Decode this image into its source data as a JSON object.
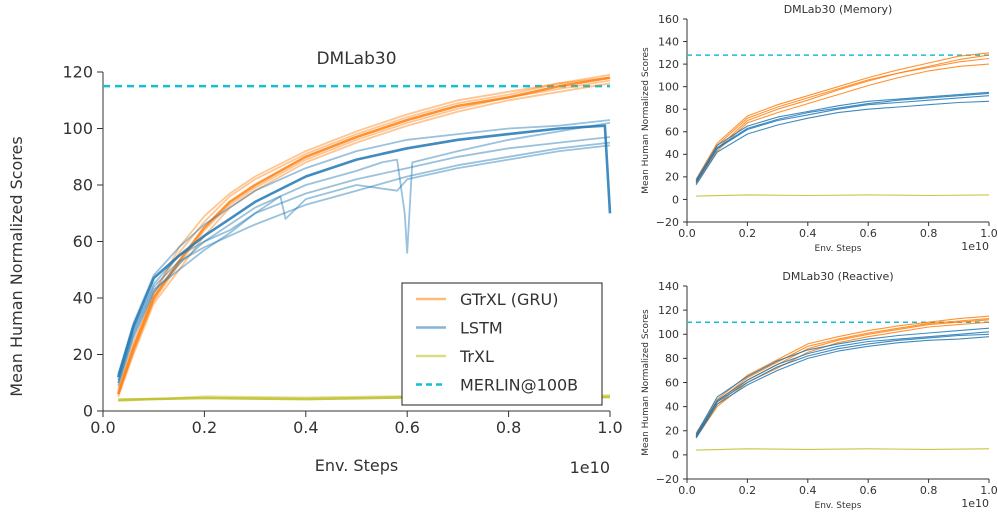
{
  "chart_data": [
    {
      "type": "line",
      "title": "DMLab30",
      "xlabel": "Env. Steps",
      "ylabel": "Mean Human Normalized Scores",
      "x_multiplier": "1e10",
      "xlim": [
        0,
        1.0
      ],
      "ylim": [
        0,
        120
      ],
      "xticks": [
        0.0,
        0.2,
        0.4,
        0.6,
        0.8,
        1.0
      ],
      "xtick_labels": [
        "0.0",
        "0.2",
        "0.4",
        "0.6",
        "0.8",
        "1.0"
      ],
      "yticks": [
        0,
        20,
        40,
        60,
        80,
        100,
        120
      ],
      "ytick_labels": [
        "0",
        "20",
        "40",
        "60",
        "80",
        "100",
        "120"
      ],
      "legend": {
        "placement": "lower-right",
        "entries": [
          {
            "label": "GTrXL (GRU)",
            "color": "#ff7f0e",
            "style": "solid"
          },
          {
            "label": "LSTM",
            "color": "#1f77b4",
            "style": "solid"
          },
          {
            "label": "TrXL",
            "color": "#bcbd22",
            "style": "solid"
          },
          {
            "label": "MERLIN@100B",
            "color": "#17becf",
            "style": "dashed"
          }
        ]
      },
      "reference_line": {
        "y": 115,
        "color": "#17becf"
      },
      "series": [
        {
          "group": "GTrXL (GRU)",
          "color": "#ff7f0e",
          "emphasis": true,
          "x": [
            0.03,
            0.06,
            0.1,
            0.15,
            0.2,
            0.25,
            0.3,
            0.4,
            0.5,
            0.6,
            0.7,
            0.8,
            0.9,
            1.0
          ],
          "y": [
            6,
            22,
            40,
            53,
            65,
            74,
            80,
            90,
            97,
            103,
            108,
            111,
            115,
            118
          ]
        },
        {
          "group": "GTrXL (GRU)",
          "color": "#ff7f0e",
          "x": [
            0.03,
            0.06,
            0.1,
            0.15,
            0.2,
            0.25,
            0.3,
            0.4,
            0.5,
            0.6,
            0.7,
            0.8,
            0.9,
            1.0
          ],
          "y": [
            8,
            24,
            42,
            56,
            67,
            76,
            82,
            91,
            98,
            104,
            109,
            112,
            116,
            118
          ]
        },
        {
          "group": "GTrXL (GRU)",
          "color": "#ff7f0e",
          "x": [
            0.03,
            0.06,
            0.1,
            0.15,
            0.2,
            0.25,
            0.3,
            0.4,
            0.5,
            0.6,
            0.7,
            0.8,
            0.9,
            1.0
          ],
          "y": [
            5,
            20,
            38,
            50,
            62,
            72,
            78,
            88,
            95,
            101,
            106,
            110,
            113,
            116
          ]
        },
        {
          "group": "GTrXL (GRU)",
          "color": "#ff7f0e",
          "x": [
            0.03,
            0.06,
            0.1,
            0.15,
            0.2,
            0.25,
            0.3,
            0.4,
            0.5,
            0.6,
            0.7,
            0.8,
            0.9,
            1.0
          ],
          "y": [
            7,
            23,
            41,
            58,
            69,
            77,
            83,
            92,
            99,
            105,
            110,
            113,
            116,
            119
          ]
        },
        {
          "group": "GTrXL (GRU)",
          "color": "#ff7f0e",
          "x": [
            0.03,
            0.06,
            0.1,
            0.15,
            0.2,
            0.25,
            0.3,
            0.4,
            0.5,
            0.6,
            0.7,
            0.8,
            0.9,
            1.0
          ],
          "y": [
            6,
            21,
            39,
            52,
            64,
            73,
            79,
            89,
            96,
            102,
            107,
            111,
            114,
            117
          ]
        },
        {
          "group": "LSTM",
          "color": "#1f77b4",
          "emphasis": true,
          "x": [
            0.03,
            0.06,
            0.1,
            0.15,
            0.2,
            0.25,
            0.3,
            0.4,
            0.5,
            0.6,
            0.7,
            0.8,
            0.9,
            0.99,
            1.0
          ],
          "y": [
            12,
            30,
            47,
            55,
            62,
            68,
            74,
            83,
            89,
            93,
            96,
            98,
            100,
            101,
            70
          ]
        },
        {
          "group": "LSTM",
          "color": "#1f77b4",
          "x": [
            0.03,
            0.06,
            0.1,
            0.15,
            0.2,
            0.25,
            0.3,
            0.4,
            0.5,
            0.6,
            0.7,
            0.8,
            0.9,
            1.0
          ],
          "y": [
            10,
            28,
            44,
            53,
            58,
            62,
            66,
            73,
            78,
            83,
            87,
            90,
            93,
            95
          ]
        },
        {
          "group": "LSTM",
          "color": "#1f77b4",
          "x": [
            0.03,
            0.06,
            0.1,
            0.15,
            0.2,
            0.25,
            0.3,
            0.4,
            0.5,
            0.6,
            0.7,
            0.8,
            0.9,
            1.0
          ],
          "y": [
            11,
            29,
            45,
            55,
            60,
            64,
            70,
            77,
            82,
            86,
            90,
            93,
            95,
            97
          ]
        },
        {
          "group": "LSTM",
          "color": "#1f77b4",
          "x": [
            0.03,
            0.06,
            0.1,
            0.15,
            0.2,
            0.25,
            0.3,
            0.4,
            0.5,
            0.55,
            0.58,
            0.595,
            0.6,
            0.61,
            0.7,
            0.8,
            0.9,
            1.0
          ],
          "y": [
            9,
            26,
            42,
            52,
            60,
            66,
            72,
            80,
            85,
            88,
            89,
            70,
            56,
            88,
            92,
            96,
            99,
            102
          ]
        },
        {
          "group": "LSTM",
          "color": "#1f77b4",
          "x": [
            0.03,
            0.06,
            0.1,
            0.15,
            0.2,
            0.25,
            0.3,
            0.35,
            0.36,
            0.4,
            0.5,
            0.58,
            0.6,
            0.7,
            0.8,
            0.9,
            1.0
          ],
          "y": [
            10,
            27,
            43,
            50,
            57,
            63,
            70,
            76,
            68,
            75,
            80,
            78,
            82,
            86,
            89,
            92,
            94
          ]
        },
        {
          "group": "LSTM",
          "color": "#1f77b4",
          "x": [
            0.03,
            0.06,
            0.1,
            0.15,
            0.2,
            0.25,
            0.3,
            0.4,
            0.5,
            0.6,
            0.7,
            0.8,
            0.9,
            1.0
          ],
          "y": [
            13,
            31,
            48,
            58,
            66,
            72,
            78,
            86,
            92,
            96,
            98,
            100,
            101,
            103
          ]
        },
        {
          "group": "TrXL",
          "color": "#bcbd22",
          "emphasis": true,
          "x": [
            0.03,
            0.2,
            0.4,
            0.6,
            0.8,
            1.0
          ],
          "y": [
            4,
            4.6,
            4.2,
            4.8,
            4.5,
            5
          ]
        },
        {
          "group": "TrXL",
          "color": "#bcbd22",
          "x": [
            0.03,
            0.2,
            0.4,
            0.6,
            0.8,
            1.0
          ],
          "y": [
            3.5,
            5.2,
            4.8,
            5.3,
            5.0,
            5.6
          ]
        }
      ]
    },
    {
      "type": "line",
      "title": "DMLab30 (Memory)",
      "xlabel": "Env. Steps",
      "ylabel": "Mean Human Normalized Scores",
      "x_multiplier": "1e10",
      "xlim": [
        0,
        1.0
      ],
      "ylim": [
        -20,
        160
      ],
      "xticks": [
        0.0,
        0.2,
        0.4,
        0.6,
        0.8,
        1.0
      ],
      "xtick_labels": [
        "0.0",
        "0.2",
        "0.4",
        "0.6",
        "0.8",
        "1.0"
      ],
      "yticks": [
        -20,
        0,
        20,
        40,
        60,
        80,
        100,
        120,
        140,
        160
      ],
      "ytick_labels": [
        "−20",
        "0",
        "20",
        "40",
        "60",
        "80",
        "100",
        "120",
        "140",
        "160"
      ],
      "reference_line": {
        "y": 128,
        "color": "#17becf"
      },
      "series": [
        {
          "group": "GTrXL (GRU)",
          "color": "#ff7f0e",
          "x": [
            0.03,
            0.1,
            0.2,
            0.3,
            0.4,
            0.5,
            0.6,
            0.7,
            0.8,
            0.9,
            1.0
          ],
          "y": [
            15,
            45,
            70,
            80,
            88,
            97,
            105,
            112,
            118,
            124,
            128
          ]
        },
        {
          "group": "GTrXL (GRU)",
          "color": "#ff7f0e",
          "x": [
            0.03,
            0.1,
            0.2,
            0.3,
            0.4,
            0.5,
            0.6,
            0.7,
            0.8,
            0.9,
            1.0
          ],
          "y": [
            18,
            50,
            74,
            84,
            92,
            100,
            108,
            115,
            121,
            127,
            130
          ]
        },
        {
          "group": "GTrXL (GRU)",
          "color": "#ff7f0e",
          "x": [
            0.03,
            0.1,
            0.2,
            0.3,
            0.4,
            0.5,
            0.6,
            0.7,
            0.8,
            0.9,
            1.0
          ],
          "y": [
            14,
            43,
            68,
            77,
            85,
            93,
            101,
            108,
            114,
            118,
            120
          ]
        },
        {
          "group": "GTrXL (GRU)",
          "color": "#ff7f0e",
          "x": [
            0.03,
            0.1,
            0.2,
            0.3,
            0.4,
            0.5,
            0.6,
            0.7,
            0.8,
            0.9,
            1.0
          ],
          "y": [
            16,
            48,
            72,
            82,
            90,
            98,
            106,
            112,
            117,
            122,
            125
          ]
        },
        {
          "group": "LSTM",
          "color": "#1f77b4",
          "x": [
            0.03,
            0.1,
            0.2,
            0.3,
            0.4,
            0.5,
            0.6,
            0.7,
            0.8,
            0.9,
            1.0
          ],
          "y": [
            15,
            45,
            62,
            70,
            75,
            80,
            84,
            86,
            88,
            90,
            92
          ]
        },
        {
          "group": "LSTM",
          "color": "#1f77b4",
          "x": [
            0.03,
            0.1,
            0.2,
            0.3,
            0.4,
            0.5,
            0.6,
            0.7,
            0.8,
            0.9,
            1.0
          ],
          "y": [
            17,
            48,
            65,
            73,
            78,
            83,
            87,
            89,
            91,
            93,
            95
          ]
        },
        {
          "group": "LSTM",
          "color": "#1f77b4",
          "x": [
            0.03,
            0.1,
            0.2,
            0.3,
            0.4,
            0.5,
            0.6,
            0.7,
            0.8,
            0.9,
            1.0
          ],
          "y": [
            13,
            42,
            58,
            66,
            72,
            77,
            80,
            82,
            84,
            86,
            87
          ]
        },
        {
          "group": "LSTM",
          "color": "#1f77b4",
          "x": [
            0.03,
            0.1,
            0.2,
            0.3,
            0.4,
            0.5,
            0.6,
            0.7,
            0.8,
            0.9,
            1.0
          ],
          "y": [
            16,
            46,
            63,
            71,
            77,
            81,
            85,
            88,
            90,
            92,
            94
          ]
        },
        {
          "group": "TrXL",
          "color": "#bcbd22",
          "x": [
            0.03,
            0.2,
            0.4,
            0.6,
            0.8,
            1.0
          ],
          "y": [
            3,
            4,
            3.5,
            4,
            3.5,
            4
          ]
        }
      ]
    },
    {
      "type": "line",
      "title": "DMLab30 (Reactive)",
      "xlabel": "Env. Steps",
      "ylabel": "Mean Human Normalized Scores",
      "x_multiplier": "1e10",
      "xlim": [
        0,
        1.0
      ],
      "ylim": [
        -20,
        140
      ],
      "xticks": [
        0.0,
        0.2,
        0.4,
        0.6,
        0.8,
        1.0
      ],
      "xtick_labels": [
        "0.0",
        "0.2",
        "0.4",
        "0.6",
        "0.8",
        "1.0"
      ],
      "yticks": [
        -20,
        0,
        20,
        40,
        60,
        80,
        100,
        120,
        140
      ],
      "ytick_labels": [
        "−20",
        "0",
        "20",
        "40",
        "60",
        "80",
        "100",
        "120",
        "140"
      ],
      "reference_line": {
        "y": 110,
        "color": "#17becf"
      },
      "series": [
        {
          "group": "GTrXL (GRU)",
          "color": "#ff7f0e",
          "x": [
            0.03,
            0.1,
            0.2,
            0.3,
            0.4,
            0.5,
            0.6,
            0.7,
            0.8,
            0.9,
            1.0
          ],
          "y": [
            15,
            42,
            62,
            75,
            88,
            95,
            100,
            104,
            108,
            110,
            112
          ]
        },
        {
          "group": "GTrXL (GRU)",
          "color": "#ff7f0e",
          "x": [
            0.03,
            0.1,
            0.2,
            0.3,
            0.4,
            0.5,
            0.6,
            0.7,
            0.8,
            0.9,
            1.0
          ],
          "y": [
            18,
            46,
            66,
            79,
            92,
            98,
            103,
            107,
            110,
            113,
            115
          ]
        },
        {
          "group": "GTrXL (GRU)",
          "color": "#ff7f0e",
          "x": [
            0.03,
            0.1,
            0.2,
            0.3,
            0.4,
            0.5,
            0.6,
            0.7,
            0.8,
            0.9,
            1.0
          ],
          "y": [
            14,
            40,
            60,
            72,
            85,
            93,
            98,
            102,
            106,
            108,
            110
          ]
        },
        {
          "group": "GTrXL (GRU)",
          "color": "#ff7f0e",
          "x": [
            0.03,
            0.1,
            0.2,
            0.3,
            0.4,
            0.5,
            0.6,
            0.7,
            0.8,
            0.9,
            1.0
          ],
          "y": [
            16,
            44,
            64,
            77,
            90,
            96,
            101,
            105,
            109,
            111,
            113
          ]
        },
        {
          "group": "LSTM",
          "color": "#1f77b4",
          "x": [
            0.03,
            0.1,
            0.2,
            0.3,
            0.4,
            0.5,
            0.6,
            0.7,
            0.8,
            0.9,
            1.0
          ],
          "y": [
            16,
            45,
            62,
            75,
            84,
            90,
            94,
            96,
            98,
            100,
            102
          ]
        },
        {
          "group": "LSTM",
          "color": "#1f77b4",
          "x": [
            0.03,
            0.1,
            0.2,
            0.3,
            0.4,
            0.5,
            0.6,
            0.7,
            0.8,
            0.9,
            1.0
          ],
          "y": [
            17,
            48,
            65,
            78,
            87,
            92,
            96,
            99,
            101,
            103,
            105
          ]
        },
        {
          "group": "LSTM",
          "color": "#1f77b4",
          "x": [
            0.03,
            0.1,
            0.2,
            0.3,
            0.4,
            0.5,
            0.6,
            0.7,
            0.8,
            0.9,
            1.0
          ],
          "y": [
            14,
            42,
            58,
            70,
            80,
            86,
            90,
            93,
            95,
            96,
            98
          ]
        },
        {
          "group": "LSTM",
          "color": "#1f77b4",
          "x": [
            0.03,
            0.1,
            0.2,
            0.3,
            0.4,
            0.5,
            0.6,
            0.7,
            0.8,
            0.9,
            1.0
          ],
          "y": [
            15,
            44,
            60,
            73,
            82,
            88,
            92,
            95,
            97,
            99,
            100
          ]
        },
        {
          "group": "TrXL",
          "color": "#bcbd22",
          "x": [
            0.03,
            0.2,
            0.4,
            0.6,
            0.8,
            1.0
          ],
          "y": [
            4,
            5,
            4.5,
            5,
            4.5,
            5
          ]
        }
      ]
    }
  ]
}
